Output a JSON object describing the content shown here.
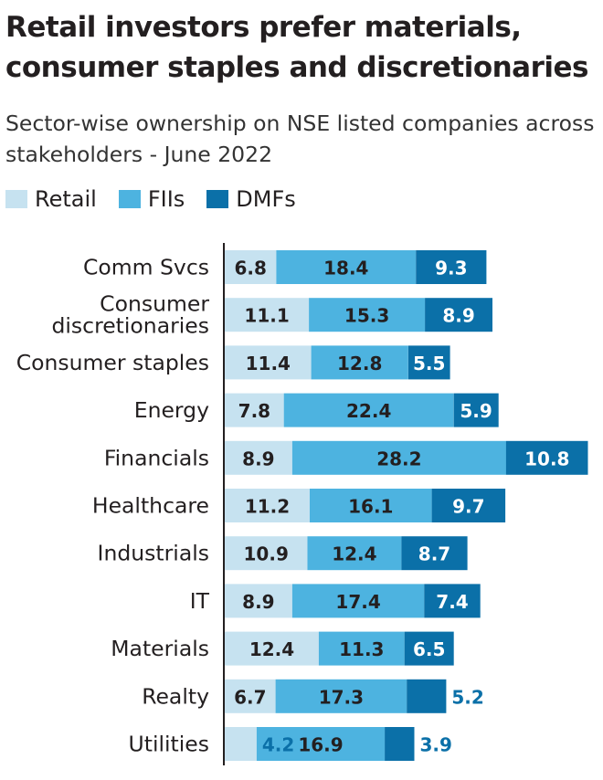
{
  "title": "Retail investors prefer materials, consumer staples and discretionaries",
  "subtitle": "Sector-wise ownership on NSE listed companies across stakeholders - June 2022",
  "colors": {
    "retail": "#c6e2f0",
    "fiis": "#4db3e0",
    "dmfs": "#0b70a8",
    "axis": "#231f20",
    "label_dark": "#231f20",
    "label_light": "#ffffff",
    "outside_label": "#0b70a8"
  },
  "legend": [
    {
      "name": "Retail",
      "color_key": "retail"
    },
    {
      "name": "FIIs",
      "color_key": "fiis"
    },
    {
      "name": "DMFs",
      "color_key": "dmfs"
    }
  ],
  "chart_data": {
    "type": "bar",
    "orientation": "horizontal",
    "stacked": true,
    "categories": [
      "Comm Svcs",
      "Consumer discretionaries",
      "Consumer staples",
      "Energy",
      "Financials",
      "Healthcare",
      "Industrials",
      "IT",
      "Materials",
      "Realty",
      "Utilities"
    ],
    "category_lines": [
      [
        "Comm Svcs"
      ],
      [
        "Consumer",
        "discretionaries"
      ],
      [
        "Consumer staples"
      ],
      [
        "Energy"
      ],
      [
        "Financials"
      ],
      [
        "Healthcare"
      ],
      [
        "Industrials"
      ],
      [
        "IT"
      ],
      [
        "Materials"
      ],
      [
        "Realty"
      ],
      [
        "Utilities"
      ]
    ],
    "series": [
      {
        "name": "Retail",
        "values": [
          6.8,
          11.1,
          11.4,
          7.8,
          8.9,
          11.2,
          10.9,
          8.9,
          12.4,
          6.7,
          4.2
        ]
      },
      {
        "name": "FIIs",
        "values": [
          18.4,
          15.3,
          12.8,
          22.4,
          28.2,
          16.1,
          12.4,
          17.4,
          11.3,
          17.3,
          16.9
        ]
      },
      {
        "name": "DMFs",
        "values": [
          9.3,
          8.9,
          5.5,
          5.9,
          10.8,
          9.7,
          8.7,
          7.4,
          6.5,
          5.2,
          3.9
        ]
      }
    ],
    "value_labels": [
      [
        "6.8",
        "18.4",
        "9.3"
      ],
      [
        "11.1",
        "15.3",
        "8.9"
      ],
      [
        "11.4",
        "12.8",
        "5.5"
      ],
      [
        "7.8",
        "22.4",
        "5.9"
      ],
      [
        "8.9",
        "28.2",
        "10.8"
      ],
      [
        "11.2",
        "16.1",
        "9.7"
      ],
      [
        "10.9",
        "12.4",
        "8.7"
      ],
      [
        "8.9",
        "17.4",
        "7.4"
      ],
      [
        "12.4",
        "11.3",
        "6.5"
      ],
      [
        "6.7",
        "17.3",
        "5.2"
      ],
      [
        "4.2",
        "16.9",
        "3.9"
      ]
    ],
    "legend_position": "top-left",
    "grid": false
  }
}
